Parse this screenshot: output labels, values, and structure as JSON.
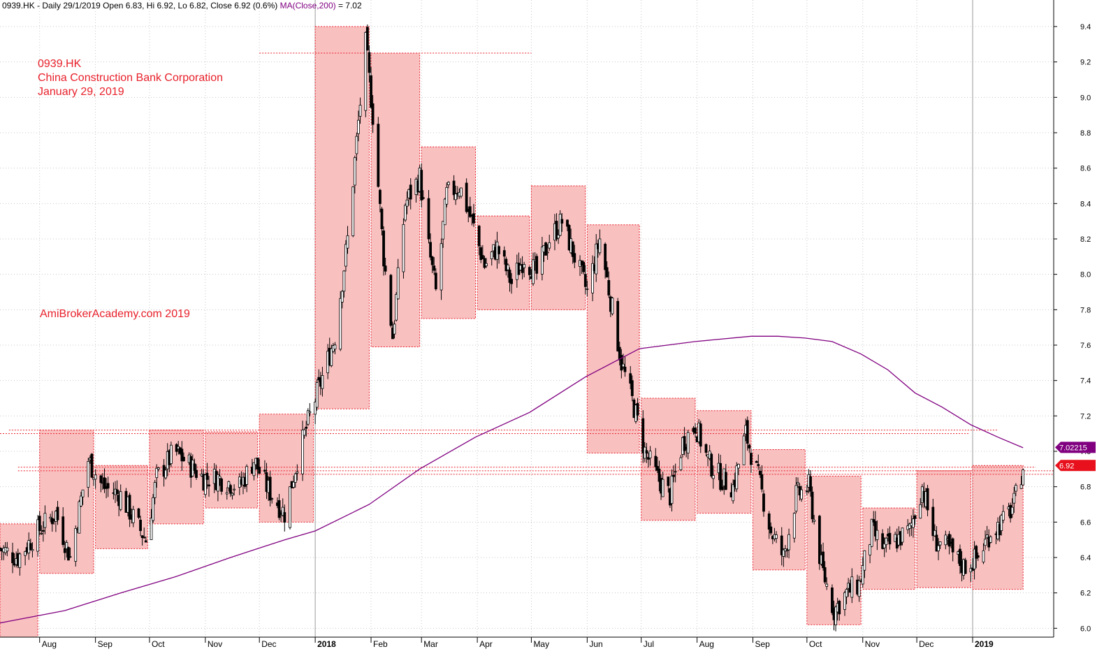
{
  "header": {
    "ticker_line": "0939.HK - Daily 29/1/2019 Open 6.83, Hi 6.92, Lo 6.82, Close 6.92 (0.6%)",
    "ma_label": "MA(Close,200)",
    "ma_value_text": " = 7.02"
  },
  "annotations": {
    "ticker": "0939.HK",
    "company": "China Construction Bank Corporation",
    "date": "January 29, 2019",
    "site": "AmiBrokerAcademy.com  2019"
  },
  "colors": {
    "box_fill": "#f9c0c0",
    "box_border": "#e8202a",
    "candle": "#000000",
    "ma_line": "#800080",
    "grid": "#c8c8c8",
    "ma_badge": "#800080",
    "close_badge": "#e8101c"
  },
  "chart_data": {
    "type": "candlestick",
    "symbol": "0939.HK",
    "period": "Daily",
    "ylim": [
      5.95,
      9.55
    ],
    "yticks": [
      6.0,
      6.2,
      6.4,
      6.6,
      6.8,
      7.0,
      7.2,
      7.4,
      7.6,
      7.8,
      8.0,
      8.2,
      8.4,
      8.6,
      8.8,
      9.0,
      9.2,
      9.4
    ],
    "x_range": [
      "2017-07-10",
      "2019-02-15"
    ],
    "month_ticks": [
      {
        "date": "2017-08-01",
        "label": "Aug",
        "bold": false
      },
      {
        "date": "2017-09-01",
        "label": "Sep",
        "bold": false
      },
      {
        "date": "2017-10-01",
        "label": "Oct",
        "bold": false
      },
      {
        "date": "2017-11-01",
        "label": "Nov",
        "bold": false
      },
      {
        "date": "2017-12-01",
        "label": "Dec",
        "bold": false
      },
      {
        "date": "2018-01-01",
        "label": "2018",
        "bold": true
      },
      {
        "date": "2018-02-01",
        "label": "Feb",
        "bold": false
      },
      {
        "date": "2018-03-01",
        "label": "Mar",
        "bold": false
      },
      {
        "date": "2018-04-01",
        "label": "Apr",
        "bold": false
      },
      {
        "date": "2018-05-01",
        "label": "May",
        "bold": false
      },
      {
        "date": "2018-06-01",
        "label": "Jun",
        "bold": false
      },
      {
        "date": "2018-07-01",
        "label": "Jul",
        "bold": false
      },
      {
        "date": "2018-08-01",
        "label": "Aug",
        "bold": false
      },
      {
        "date": "2018-09-01",
        "label": "Sep",
        "bold": false
      },
      {
        "date": "2018-10-01",
        "label": "Oct",
        "bold": false
      },
      {
        "date": "2018-11-01",
        "label": "Nov",
        "bold": false
      },
      {
        "date": "2018-12-01",
        "label": "Dec",
        "bold": false
      },
      {
        "date": "2019-01-01",
        "label": "2019",
        "bold": true
      }
    ],
    "monthly_boxes": [
      {
        "start": "2017-07-10",
        "end": "2017-07-31",
        "high": 6.59,
        "low": 5.95
      },
      {
        "start": "2017-08-01",
        "end": "2017-08-31",
        "high": 7.12,
        "low": 6.31
      },
      {
        "start": "2017-09-01",
        "end": "2017-09-30",
        "high": 6.92,
        "low": 6.45
      },
      {
        "start": "2017-10-01",
        "end": "2017-10-31",
        "high": 7.12,
        "low": 6.59
      },
      {
        "start": "2017-11-01",
        "end": "2017-11-30",
        "high": 7.11,
        "low": 6.68
      },
      {
        "start": "2017-12-01",
        "end": "2017-12-31",
        "high": 7.21,
        "low": 6.6
      },
      {
        "start": "2018-01-01",
        "end": "2018-01-31",
        "high": 9.4,
        "low": 7.24
      },
      {
        "start": "2018-02-01",
        "end": "2018-02-28",
        "high": 9.25,
        "low": 7.59
      },
      {
        "start": "2018-03-01",
        "end": "2018-03-31",
        "high": 8.72,
        "low": 7.75
      },
      {
        "start": "2018-04-01",
        "end": "2018-04-30",
        "high": 8.33,
        "low": 7.8
      },
      {
        "start": "2018-05-01",
        "end": "2018-05-31",
        "high": 8.5,
        "low": 7.8
      },
      {
        "start": "2018-06-01",
        "end": "2018-06-30",
        "high": 8.28,
        "low": 6.99
      },
      {
        "start": "2018-07-01",
        "end": "2018-07-31",
        "high": 7.3,
        "low": 6.61
      },
      {
        "start": "2018-08-01",
        "end": "2018-08-31",
        "high": 7.23,
        "low": 6.65
      },
      {
        "start": "2018-09-01",
        "end": "2018-09-30",
        "high": 7.01,
        "low": 6.33
      },
      {
        "start": "2018-10-01",
        "end": "2018-10-31",
        "high": 6.86,
        "low": 6.02
      },
      {
        "start": "2018-11-01",
        "end": "2018-11-30",
        "high": 6.68,
        "low": 6.22
      },
      {
        "start": "2018-12-01",
        "end": "2018-12-31",
        "high": 6.89,
        "low": 6.23
      },
      {
        "start": "2019-01-01",
        "end": "2019-01-29",
        "high": 6.92,
        "low": 6.22
      }
    ],
    "resistance_lines": [
      {
        "y": 9.25,
        "start": "2017-12-01",
        "end": "2018-05-01"
      },
      {
        "y": 7.12,
        "start": "2017-07-15",
        "end": "2019-01-15"
      },
      {
        "y": 7.1,
        "start": "2017-07-10",
        "end": "2018-12-30"
      },
      {
        "y": 6.91,
        "start": "2017-07-20",
        "end": "2019-02-05"
      },
      {
        "y": 6.89,
        "start": "2017-07-20",
        "end": "2019-02-15"
      },
      {
        "y": 6.87,
        "start": "2017-09-01",
        "end": "2019-02-15"
      }
    ],
    "price_anchors": [
      [
        "2017-07-10",
        6.45
      ],
      [
        "2017-07-20",
        6.4
      ],
      [
        "2017-07-31",
        6.55
      ],
      [
        "2017-08-10",
        6.65
      ],
      [
        "2017-08-18",
        6.4
      ],
      [
        "2017-08-28",
        6.95
      ],
      [
        "2017-09-05",
        6.8
      ],
      [
        "2017-09-15",
        6.75
      ],
      [
        "2017-09-29",
        6.5
      ],
      [
        "2017-10-05",
        6.85
      ],
      [
        "2017-10-15",
        7.0
      ],
      [
        "2017-10-31",
        6.85
      ],
      [
        "2017-11-08",
        6.85
      ],
      [
        "2017-11-20",
        6.8
      ],
      [
        "2017-11-28",
        6.95
      ],
      [
        "2017-12-05",
        6.8
      ],
      [
        "2017-12-15",
        6.65
      ],
      [
        "2017-12-22",
        6.95
      ],
      [
        "2017-12-29",
        7.2
      ],
      [
        "2018-01-05",
        7.42
      ],
      [
        "2018-01-12",
        7.65
      ],
      [
        "2018-01-19",
        8.2
      ],
      [
        "2018-01-24",
        8.75
      ],
      [
        "2018-01-29",
        9.3
      ],
      [
        "2018-02-02",
        8.9
      ],
      [
        "2018-02-08",
        8.1
      ],
      [
        "2018-02-13",
        7.65
      ],
      [
        "2018-02-20",
        8.4
      ],
      [
        "2018-02-28",
        8.55
      ],
      [
        "2018-03-05",
        8.15
      ],
      [
        "2018-03-09",
        7.9
      ],
      [
        "2018-03-15",
        8.45
      ],
      [
        "2018-03-22",
        8.5
      ],
      [
        "2018-03-29",
        8.3
      ],
      [
        "2018-04-05",
        8.05
      ],
      [
        "2018-04-12",
        8.15
      ],
      [
        "2018-04-20",
        7.95
      ],
      [
        "2018-04-27",
        8.1
      ],
      [
        "2018-05-04",
        8.0
      ],
      [
        "2018-05-11",
        8.2
      ],
      [
        "2018-05-18",
        8.3
      ],
      [
        "2018-05-25",
        8.1
      ],
      [
        "2018-06-01",
        7.9
      ],
      [
        "2018-06-08",
        8.2
      ],
      [
        "2018-06-15",
        7.8
      ],
      [
        "2018-06-20",
        7.5
      ],
      [
        "2018-06-27",
        7.25
      ],
      [
        "2018-07-03",
        7.0
      ],
      [
        "2018-07-10",
        6.85
      ],
      [
        "2018-07-17",
        6.75
      ],
      [
        "2018-07-24",
        7.05
      ],
      [
        "2018-07-31",
        7.15
      ],
      [
        "2018-08-07",
        6.95
      ],
      [
        "2018-08-14",
        6.85
      ],
      [
        "2018-08-21",
        6.8
      ],
      [
        "2018-08-28",
        7.1
      ],
      [
        "2018-09-04",
        6.85
      ],
      [
        "2018-09-11",
        6.55
      ],
      [
        "2018-09-18",
        6.4
      ],
      [
        "2018-09-25",
        6.75
      ],
      [
        "2018-10-02",
        6.8
      ],
      [
        "2018-10-09",
        6.35
      ],
      [
        "2018-10-16",
        6.1
      ],
      [
        "2018-10-23",
        6.2
      ],
      [
        "2018-10-30",
        6.25
      ],
      [
        "2018-11-06",
        6.55
      ],
      [
        "2018-11-13",
        6.45
      ],
      [
        "2018-11-20",
        6.5
      ],
      [
        "2018-11-27",
        6.55
      ],
      [
        "2018-12-04",
        6.8
      ],
      [
        "2018-12-11",
        6.5
      ],
      [
        "2018-12-18",
        6.45
      ],
      [
        "2018-12-27",
        6.35
      ],
      [
        "2019-01-04",
        6.4
      ],
      [
        "2019-01-11",
        6.55
      ],
      [
        "2019-01-18",
        6.6
      ],
      [
        "2019-01-24",
        6.7
      ],
      [
        "2019-01-29",
        6.92
      ]
    ],
    "ma200_anchors": [
      [
        "2017-07-10",
        6.03
      ],
      [
        "2017-08-15",
        6.1
      ],
      [
        "2017-09-15",
        6.2
      ],
      [
        "2017-10-15",
        6.29
      ],
      [
        "2017-11-15",
        6.4
      ],
      [
        "2017-12-15",
        6.5
      ],
      [
        "2018-01-01",
        6.55
      ],
      [
        "2018-01-31",
        6.7
      ],
      [
        "2018-02-28",
        6.9
      ],
      [
        "2018-03-31",
        7.08
      ],
      [
        "2018-04-30",
        7.22
      ],
      [
        "2018-05-31",
        7.42
      ],
      [
        "2018-06-30",
        7.58
      ],
      [
        "2018-07-31",
        7.62
      ],
      [
        "2018-08-31",
        7.65
      ],
      [
        "2018-09-15",
        7.65
      ],
      [
        "2018-09-30",
        7.64
      ],
      [
        "2018-10-15",
        7.62
      ],
      [
        "2018-10-31",
        7.55
      ],
      [
        "2018-11-15",
        7.46
      ],
      [
        "2018-11-30",
        7.33
      ],
      [
        "2018-12-15",
        7.25
      ],
      [
        "2018-12-31",
        7.15
      ],
      [
        "2019-01-15",
        7.08
      ],
      [
        "2019-01-29",
        7.02
      ]
    ],
    "ma200_badge": "7.02215",
    "close_badge": "6.92"
  }
}
